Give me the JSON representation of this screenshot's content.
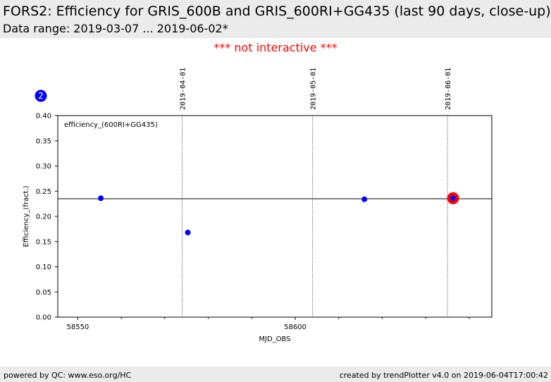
{
  "header": {
    "title": "FORS2: Efficiency for GRIS_600B and GRIS_600RI+GG435 (last 90 days, close-up)",
    "subtitle": "Data range: 2019-03-07 ... 2019-06-02*"
  },
  "notice": "*** not interactive ***",
  "footer": {
    "left": "powered by QC: www.eso.org/HC",
    "right": "created by trendPlotter v4.0 on 2019-06-04T17:00:42"
  },
  "colors": {
    "points": "#0000ff",
    "highlight": "#ff0000",
    "badge": "#0000ff",
    "notice": "#ff0000",
    "band": "#ebebeb"
  },
  "chart_data": {
    "type": "scatter",
    "badge": "2",
    "legend_text": "efficiency_(600RI+GG435)",
    "xlabel": "MJD_OBS",
    "ylabel": "Efficiency_(fract.)",
    "xlim": [
      58545.4,
      58645.2
    ],
    "ylim": [
      0.0,
      0.4
    ],
    "xticks": [
      58550,
      58600
    ],
    "xtick_labels": [
      "58550",
      "58600"
    ],
    "x_minor_ticks": [
      58560,
      58570,
      58580,
      58590,
      58610,
      58620,
      58630,
      58640
    ],
    "yticks": [
      0.0,
      0.05,
      0.1,
      0.15,
      0.2,
      0.25,
      0.3,
      0.35,
      0.4
    ],
    "ytick_labels": [
      "0.00",
      "0.05",
      "0.10",
      "0.15",
      "0.20",
      "0.25",
      "0.30",
      "0.35",
      "0.40"
    ],
    "reference_line": 0.235,
    "date_markers": [
      {
        "mjd": 58574,
        "label": "2019-04-01"
      },
      {
        "mjd": 58604,
        "label": "2019-05-01"
      },
      {
        "mjd": 58635,
        "label": "2019-06-01"
      }
    ],
    "points": [
      {
        "x": 58555.3,
        "y": 0.236
      },
      {
        "x": 58575.3,
        "y": 0.168
      },
      {
        "x": 58615.9,
        "y": 0.234
      },
      {
        "x": 58636.3,
        "y": 0.236
      }
    ],
    "highlight_point": {
      "x": 58636.3,
      "y": 0.236
    }
  }
}
